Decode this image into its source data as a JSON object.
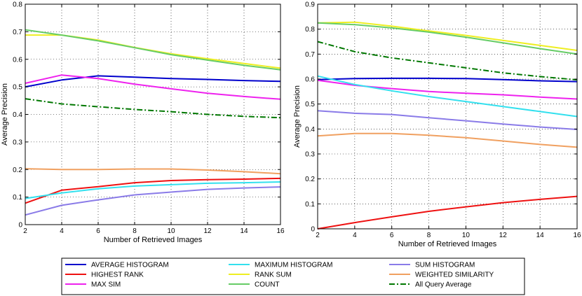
{
  "chart_data": [
    {
      "type": "line",
      "xlabel": "Number of Retrieved Images",
      "ylabel": "Average Precision",
      "xlim": [
        2,
        16
      ],
      "ylim": [
        0,
        0.8
      ],
      "xticks": [
        "2",
        "4",
        "6",
        "8",
        "10",
        "12",
        "14",
        "16"
      ],
      "yticks": [
        "0",
        "0.1",
        "0.2",
        "0.3",
        "0.4",
        "0.5",
        "0.6",
        "0.7",
        "0.8"
      ],
      "grid": true,
      "x": [
        2,
        4,
        6,
        8,
        10,
        12,
        14,
        16
      ],
      "series": [
        {
          "name": "AVERAGE HISTOGRAM",
          "color": "#0000cc",
          "dash": "solid",
          "values": [
            0.5,
            0.525,
            0.54,
            0.535,
            0.53,
            0.527,
            0.523,
            0.52
          ]
        },
        {
          "name": "HIGHEST RANK",
          "color": "#ee1111",
          "dash": "solid",
          "values": [
            0.078,
            0.125,
            0.138,
            0.152,
            0.16,
            0.163,
            0.165,
            0.168
          ]
        },
        {
          "name": "MAX SIM",
          "color": "#ee22ee",
          "dash": "solid",
          "values": [
            0.513,
            0.543,
            0.53,
            0.51,
            0.493,
            0.477,
            0.465,
            0.455
          ]
        },
        {
          "name": "MAXIMUM HISTOGRAM",
          "color": "#33e0ee",
          "dash": "solid",
          "values": [
            0.095,
            0.115,
            0.13,
            0.14,
            0.145,
            0.15,
            0.152,
            0.155
          ]
        },
        {
          "name": "RANK SUM",
          "color": "#eeee22",
          "dash": "solid",
          "values": [
            0.688,
            0.688,
            0.67,
            0.643,
            0.62,
            0.602,
            0.585,
            0.568
          ]
        },
        {
          "name": "COUNT",
          "color": "#66cc66",
          "dash": "solid",
          "values": [
            0.707,
            0.688,
            0.667,
            0.642,
            0.617,
            0.597,
            0.578,
            0.562
          ]
        },
        {
          "name": "SUM HISTOGRAM",
          "color": "#8a7be8",
          "dash": "solid",
          "values": [
            0.035,
            0.07,
            0.09,
            0.108,
            0.118,
            0.128,
            0.133,
            0.137
          ]
        },
        {
          "name": "WEIGHTED SIMILARITY",
          "color": "#f0a060",
          "dash": "solid",
          "values": [
            0.203,
            0.2,
            0.2,
            0.202,
            0.202,
            0.198,
            0.192,
            0.185
          ]
        },
        {
          "name": "All Query Average",
          "color": "#007700",
          "dash": "dashdot",
          "values": [
            0.457,
            0.438,
            0.428,
            0.418,
            0.41,
            0.4,
            0.393,
            0.388
          ]
        }
      ]
    },
    {
      "type": "line",
      "xlabel": "Number of Retrieved Images",
      "ylabel": "Average Precision",
      "xlim": [
        2,
        16
      ],
      "ylim": [
        0,
        0.9
      ],
      "xticks": [
        "2",
        "4",
        "6",
        "8",
        "10",
        "12",
        "14",
        "16"
      ],
      "yticks": [
        "0",
        "0.1",
        "0.2",
        "0.3",
        "0.4",
        "0.5",
        "0.6",
        "0.7",
        "0.8",
        "0.9"
      ],
      "grid": true,
      "x": [
        2,
        4,
        6,
        8,
        10,
        12,
        14,
        16
      ],
      "series": [
        {
          "name": "AVERAGE HISTOGRAM",
          "color": "#0000cc",
          "dash": "solid",
          "values": [
            0.598,
            0.602,
            0.603,
            0.603,
            0.602,
            0.598,
            0.593,
            0.59
          ]
        },
        {
          "name": "HIGHEST RANK",
          "color": "#ee1111",
          "dash": "solid",
          "values": [
            0.0,
            0.025,
            0.048,
            0.07,
            0.088,
            0.105,
            0.118,
            0.13
          ]
        },
        {
          "name": "MAX SIM",
          "color": "#ee22ee",
          "dash": "solid",
          "values": [
            0.595,
            0.575,
            0.562,
            0.55,
            0.543,
            0.537,
            0.528,
            0.52
          ]
        },
        {
          "name": "MAXIMUM HISTOGRAM",
          "color": "#33e0ee",
          "dash": "solid",
          "values": [
            0.612,
            0.578,
            0.553,
            0.53,
            0.51,
            0.49,
            0.47,
            0.45
          ]
        },
        {
          "name": "RANK SUM",
          "color": "#eeee22",
          "dash": "solid",
          "values": [
            0.825,
            0.828,
            0.812,
            0.793,
            0.775,
            0.755,
            0.735,
            0.715
          ]
        },
        {
          "name": "COUNT",
          "color": "#66cc66",
          "dash": "solid",
          "values": [
            0.825,
            0.818,
            0.805,
            0.788,
            0.768,
            0.745,
            0.722,
            0.7
          ]
        },
        {
          "name": "SUM HISTOGRAM",
          "color": "#8a7be8",
          "dash": "solid",
          "values": [
            0.473,
            0.463,
            0.458,
            0.445,
            0.433,
            0.42,
            0.408,
            0.398
          ]
        },
        {
          "name": "WEIGHTED SIMILARITY",
          "color": "#f0a060",
          "dash": "solid",
          "values": [
            0.372,
            0.382,
            0.382,
            0.375,
            0.365,
            0.352,
            0.338,
            0.327
          ]
        },
        {
          "name": "All Query Average",
          "color": "#007700",
          "dash": "dashdot",
          "values": [
            0.75,
            0.71,
            0.685,
            0.665,
            0.645,
            0.625,
            0.61,
            0.597
          ]
        }
      ]
    }
  ],
  "legend": {
    "placement": "bottom",
    "order": [
      "AVERAGE HISTOGRAM",
      "MAXIMUM HISTOGRAM",
      "SUM HISTOGRAM",
      "HIGHEST RANK",
      "RANK SUM",
      "WEIGHTED SIMILARITY",
      "MAX SIM",
      "COUNT",
      "All Query Average"
    ]
  }
}
